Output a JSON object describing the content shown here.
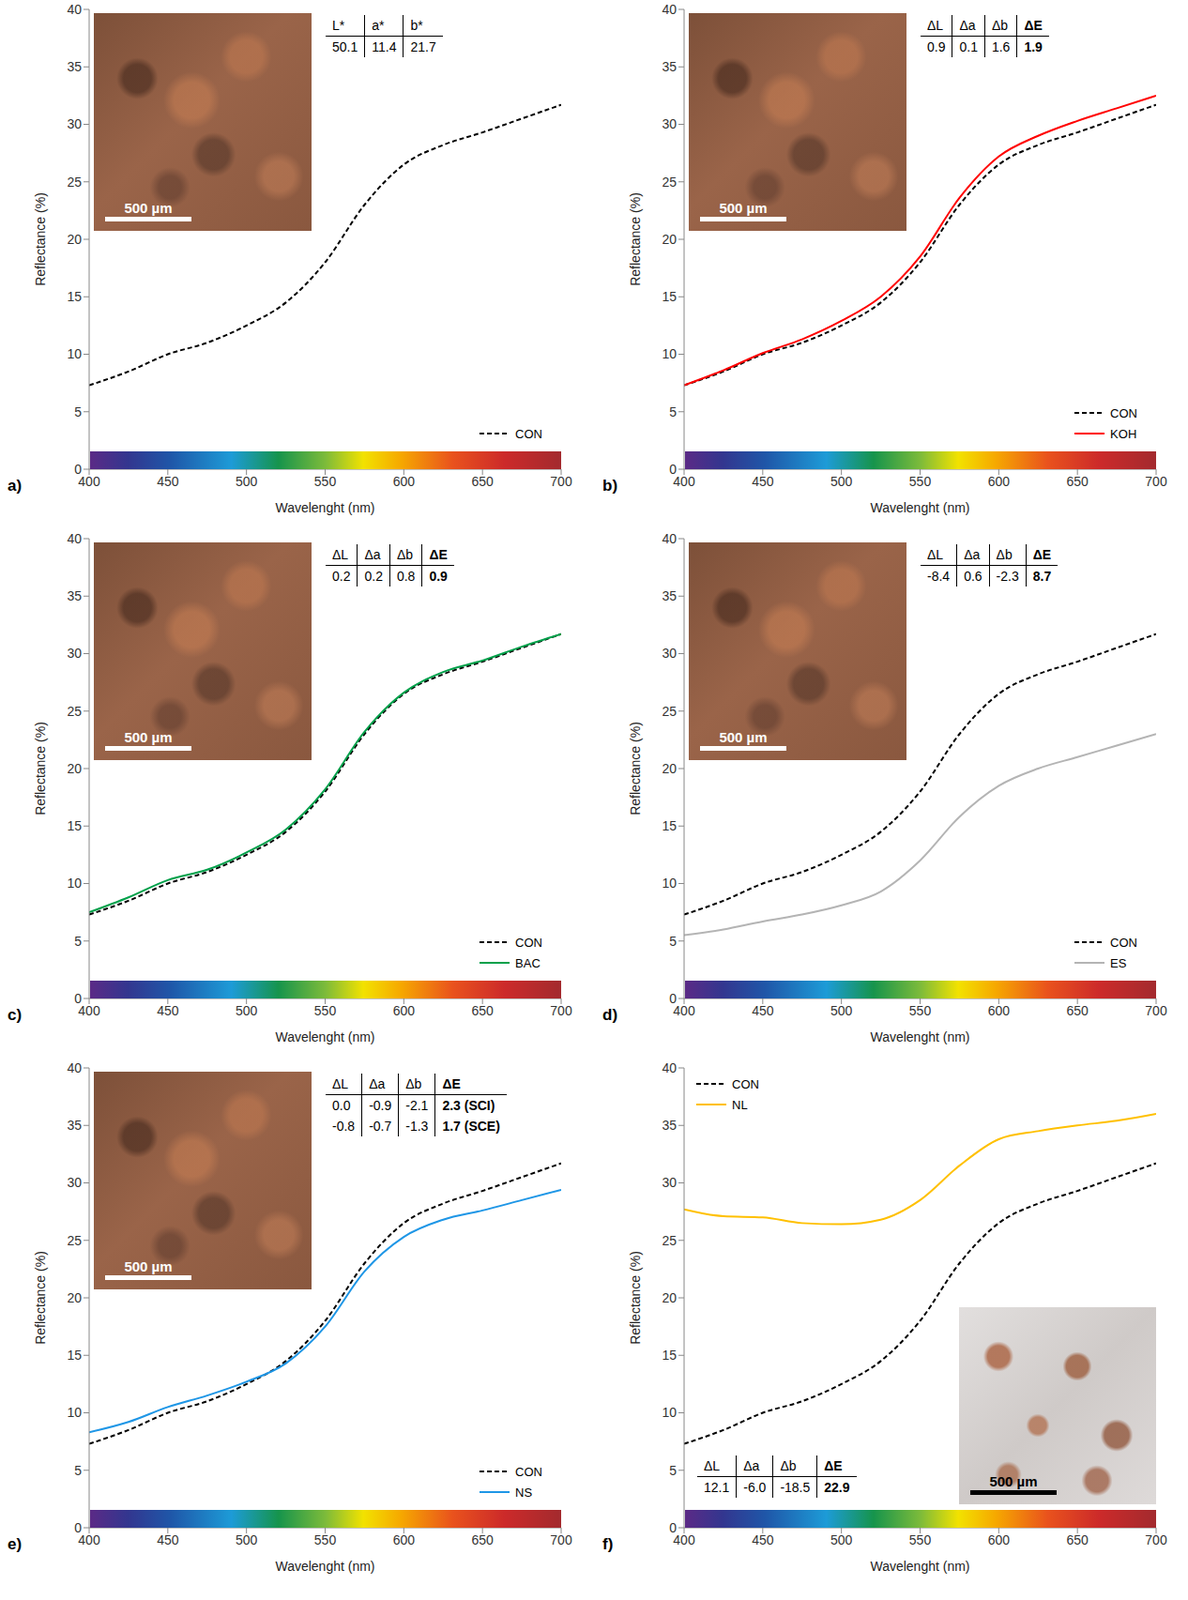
{
  "chart_data": [
    {
      "type": "line",
      "panel_label": "a)",
      "x_label": "Wavelenght (nm)",
      "y_label": "Reflectance (%)",
      "x": [
        400,
        425,
        450,
        475,
        500,
        525,
        550,
        575,
        600,
        625,
        650,
        675,
        700
      ],
      "xlim": [
        400,
        700
      ],
      "xticks": [
        400,
        450,
        500,
        550,
        600,
        650,
        700
      ],
      "ylim": [
        0,
        40
      ],
      "yticks": [
        0,
        5,
        10,
        15,
        20,
        25,
        30,
        35,
        40
      ],
      "legend": "lower right",
      "series": [
        {
          "name": "CON",
          "color": "#000000",
          "line_style": "dashed",
          "values": [
            7.3,
            8.5,
            10.0,
            11.0,
            12.5,
            14.5,
            18.0,
            23.0,
            26.5,
            28.2,
            29.3,
            30.5,
            31.7
          ]
        }
      ],
      "table": {
        "header": [
          "L*",
          "a*",
          "b*"
        ],
        "rows": [
          [
            "50.1",
            "11.4",
            "21.7"
          ]
        ]
      },
      "scale_bar": "500 µm"
    },
    {
      "type": "line",
      "panel_label": "b)",
      "x_label": "Wavelenght (nm)",
      "y_label": "Reflectance (%)",
      "x": [
        400,
        425,
        450,
        475,
        500,
        525,
        550,
        575,
        600,
        625,
        650,
        675,
        700
      ],
      "xlim": [
        400,
        700
      ],
      "xticks": [
        400,
        450,
        500,
        550,
        600,
        650,
        700
      ],
      "ylim": [
        0,
        40
      ],
      "yticks": [
        0,
        5,
        10,
        15,
        20,
        25,
        30,
        35,
        40
      ],
      "legend": "lower right",
      "series": [
        {
          "name": "CON",
          "color": "#000000",
          "line_style": "dashed",
          "values": [
            7.3,
            8.5,
            10.0,
            11.0,
            12.5,
            14.5,
            18.0,
            23.0,
            26.5,
            28.2,
            29.3,
            30.5,
            31.7
          ]
        },
        {
          "name": "KOH",
          "color": "#ff0000",
          "line_style": "solid",
          "values": [
            7.3,
            8.6,
            10.1,
            11.3,
            12.9,
            15.0,
            18.5,
            23.6,
            27.2,
            29.0,
            30.3,
            31.4,
            32.5
          ]
        }
      ],
      "table": {
        "header": [
          "ΔL",
          "Δa",
          "Δb",
          "ΔE"
        ],
        "rows": [
          [
            "0.9",
            "0.1",
            "1.6",
            "1.9"
          ]
        ]
      },
      "scale_bar": "500 µm"
    },
    {
      "type": "line",
      "panel_label": "c)",
      "x_label": "Wavelenght (nm)",
      "y_label": "Reflectance (%)",
      "x": [
        400,
        425,
        450,
        475,
        500,
        525,
        550,
        575,
        600,
        625,
        650,
        675,
        700
      ],
      "xlim": [
        400,
        700
      ],
      "xticks": [
        400,
        450,
        500,
        550,
        600,
        650,
        700
      ],
      "ylim": [
        0,
        40
      ],
      "yticks": [
        0,
        5,
        10,
        15,
        20,
        25,
        30,
        35,
        40
      ],
      "legend": "lower right",
      "series": [
        {
          "name": "CON",
          "color": "#000000",
          "line_style": "dashed",
          "values": [
            7.3,
            8.5,
            10.0,
            11.0,
            12.5,
            14.5,
            18.0,
            23.0,
            26.5,
            28.2,
            29.3,
            30.5,
            31.7
          ]
        },
        {
          "name": "BAC",
          "color": "#00a04a",
          "line_style": "solid",
          "values": [
            7.5,
            8.8,
            10.3,
            11.2,
            12.7,
            14.7,
            18.2,
            23.2,
            26.6,
            28.4,
            29.4,
            30.6,
            31.7
          ]
        }
      ],
      "table": {
        "header": [
          "ΔL",
          "Δa",
          "Δb",
          "ΔE"
        ],
        "rows": [
          [
            "0.2",
            "0.2",
            "0.8",
            "0.9"
          ]
        ]
      },
      "scale_bar": "500 µm"
    },
    {
      "type": "line",
      "panel_label": "d)",
      "x_label": "Wavelenght (nm)",
      "y_label": "Reflectance (%)",
      "x": [
        400,
        425,
        450,
        475,
        500,
        525,
        550,
        575,
        600,
        625,
        650,
        675,
        700
      ],
      "xlim": [
        400,
        700
      ],
      "xticks": [
        400,
        450,
        500,
        550,
        600,
        650,
        700
      ],
      "ylim": [
        0,
        40
      ],
      "yticks": [
        0,
        5,
        10,
        15,
        20,
        25,
        30,
        35,
        40
      ],
      "legend": "lower right",
      "series": [
        {
          "name": "CON",
          "color": "#000000",
          "line_style": "dashed",
          "values": [
            7.3,
            8.5,
            10.0,
            11.0,
            12.5,
            14.5,
            18.0,
            23.0,
            26.5,
            28.2,
            29.3,
            30.5,
            31.7
          ]
        },
        {
          "name": "ES",
          "color": "#b4b4b4",
          "line_style": "solid",
          "values": [
            5.5,
            6.0,
            6.7,
            7.3,
            8.1,
            9.3,
            12.0,
            15.8,
            18.5,
            20.0,
            21.0,
            22.0,
            23.0
          ]
        }
      ],
      "table": {
        "header": [
          "ΔL",
          "Δa",
          "Δb",
          "ΔE"
        ],
        "rows": [
          [
            "-8.4",
            "0.6",
            "-2.3",
            "8.7"
          ]
        ]
      },
      "scale_bar": "500 µm"
    },
    {
      "type": "line",
      "panel_label": "e)",
      "x_label": "Wavelenght (nm)",
      "y_label": "Reflectance (%)",
      "x": [
        400,
        425,
        450,
        475,
        500,
        525,
        550,
        575,
        600,
        625,
        650,
        675,
        700
      ],
      "xlim": [
        400,
        700
      ],
      "xticks": [
        400,
        450,
        500,
        550,
        600,
        650,
        700
      ],
      "ylim": [
        0,
        40
      ],
      "yticks": [
        0,
        5,
        10,
        15,
        20,
        25,
        30,
        35,
        40
      ],
      "legend": "lower right",
      "series": [
        {
          "name": "CON",
          "color": "#000000",
          "line_style": "dashed",
          "values": [
            7.3,
            8.5,
            10.0,
            11.0,
            12.5,
            14.5,
            18.0,
            23.0,
            26.5,
            28.2,
            29.3,
            30.5,
            31.7
          ]
        },
        {
          "name": "NS",
          "color": "#1e96e6",
          "line_style": "solid",
          "values": [
            8.3,
            9.2,
            10.5,
            11.5,
            12.7,
            14.3,
            17.5,
            22.3,
            25.3,
            26.8,
            27.6,
            28.5,
            29.4
          ]
        }
      ],
      "table": {
        "header": [
          "ΔL",
          "Δa",
          "Δb",
          "ΔE"
        ],
        "rows": [
          [
            "0.0",
            "-0.9",
            "-2.1",
            "2.3 (SCI)"
          ],
          [
            "-0.8",
            "-0.7",
            "-1.3",
            "1.7 (SCE)"
          ]
        ]
      },
      "scale_bar": "500 µm"
    },
    {
      "type": "line",
      "panel_label": "f)",
      "x_label": "Wavelenght (nm)",
      "y_label": "Reflectance (%)",
      "x": [
        400,
        425,
        450,
        475,
        500,
        525,
        550,
        575,
        600,
        625,
        650,
        675,
        700
      ],
      "xlim": [
        400,
        700
      ],
      "xticks": [
        400,
        450,
        500,
        550,
        600,
        650,
        700
      ],
      "ylim": [
        0,
        40
      ],
      "yticks": [
        0,
        5,
        10,
        15,
        20,
        25,
        30,
        35,
        40
      ],
      "legend": "upper left",
      "series": [
        {
          "name": "CON",
          "color": "#000000",
          "line_style": "dashed",
          "values": [
            7.3,
            8.5,
            10.0,
            11.0,
            12.5,
            14.5,
            18.0,
            23.0,
            26.5,
            28.2,
            29.3,
            30.5,
            31.7
          ]
        },
        {
          "name": "NL",
          "color": "#ffc000",
          "line_style": "solid",
          "values": [
            27.7,
            27.1,
            27.0,
            26.5,
            26.4,
            26.8,
            28.5,
            31.5,
            33.8,
            34.5,
            35.0,
            35.4,
            36.0
          ]
        }
      ],
      "table": {
        "header": [
          "ΔL",
          "Δa",
          "Δb",
          "ΔE"
        ],
        "rows": [
          [
            "12.1",
            "-6.0",
            "-18.5",
            "22.9"
          ]
        ]
      },
      "scale_bar": "500 µm"
    }
  ]
}
